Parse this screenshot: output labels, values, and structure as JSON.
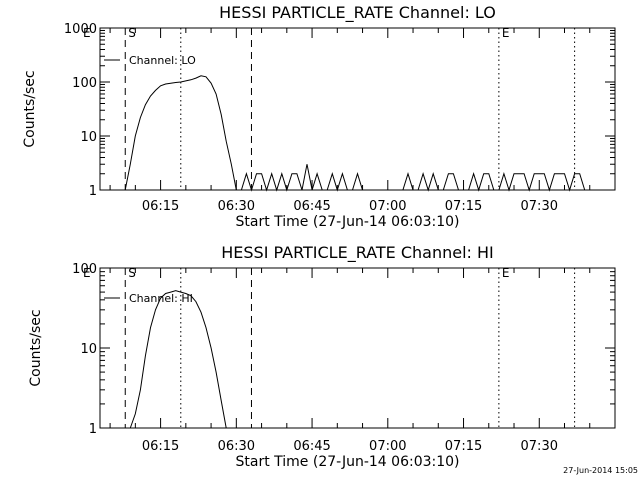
{
  "timestamp": "27-Jun-2014 15:05",
  "chart_data": [
    {
      "type": "line",
      "title": "HESSI PARTICLE_RATE Channel: LO",
      "xlabel": "Start Time (27-Jun-14 06:03:10)",
      "ylabel": "Counts/sec",
      "yscale": "log",
      "ylim": [
        1,
        1000
      ],
      "ytick_labels": [
        "1000",
        "100",
        "10",
        "1"
      ],
      "xlim": [
        "06:03",
        "07:45"
      ],
      "xtick_labels": [
        "06:15",
        "06:30",
        "06:45",
        "07:00",
        "07:15",
        "07:30"
      ],
      "legend": "top-left",
      "series": [
        {
          "name": "Channel: LO",
          "x": [
            "06:08",
            "06:09",
            "06:10",
            "06:11",
            "06:12",
            "06:13",
            "06:14",
            "06:15",
            "06:16",
            "06:17",
            "06:18",
            "06:19",
            "06:20",
            "06:21",
            "06:22",
            "06:23",
            "06:24",
            "06:25",
            "06:26",
            "06:27",
            "06:28",
            "06:29",
            "06:30",
            "06:31",
            "06:32",
            "06:33",
            "06:34",
            "06:35",
            "06:36",
            "06:37",
            "06:38",
            "06:39",
            "06:40",
            "06:41",
            "06:42",
            "06:43",
            "06:44",
            "06:45",
            "06:46",
            "06:47",
            "06:48",
            "06:49",
            "06:50",
            "06:51",
            "06:52",
            "06:53",
            "06:54",
            "06:55",
            "06:56",
            "06:57",
            "06:58",
            "06:59",
            "07:00",
            "07:01",
            "07:02",
            "07:03",
            "07:04",
            "07:05",
            "07:06",
            "07:07",
            "07:08",
            "07:09",
            "07:10",
            "07:11",
            "07:12",
            "07:13",
            "07:14",
            "07:15",
            "07:16",
            "07:17",
            "07:18",
            "07:19",
            "07:20",
            "07:21",
            "07:22",
            "07:23",
            "07:24",
            "07:25",
            "07:26",
            "07:27",
            "07:28",
            "07:29",
            "07:30",
            "07:31",
            "07:32",
            "07:33",
            "07:34",
            "07:35",
            "07:36",
            "07:37",
            "07:38",
            "07:39"
          ],
          "values": [
            1,
            3,
            10,
            22,
            38,
            55,
            70,
            85,
            92,
            95,
            98,
            100,
            105,
            110,
            118,
            130,
            125,
            95,
            60,
            25,
            8,
            3,
            1,
            1,
            2,
            1,
            2,
            2,
            1,
            2,
            1,
            2,
            1,
            2,
            2,
            1,
            3,
            1,
            2,
            1,
            1,
            2,
            1,
            2,
            1,
            1,
            2,
            1,
            1,
            1,
            1,
            1,
            1,
            1,
            1,
            1,
            2,
            1,
            1,
            2,
            1,
            2,
            1,
            1,
            2,
            2,
            1,
            1,
            1,
            2,
            1,
            2,
            2,
            1,
            1,
            2,
            1,
            2,
            2,
            2,
            1,
            2,
            2,
            2,
            1,
            2,
            2,
            2,
            1,
            2,
            2,
            1
          ]
        }
      ],
      "vlines": [
        {
          "label": "S",
          "time": "06:08",
          "style": "dashed"
        },
        {
          "label": "",
          "time": "06:19",
          "style": "dotted"
        },
        {
          "label": "",
          "time": "06:33",
          "style": "dashed"
        },
        {
          "label": "E",
          "time": "07:22",
          "style": "dotted"
        },
        {
          "label": "",
          "time": "07:37",
          "style": "dotted"
        }
      ],
      "corner_label": "E"
    },
    {
      "type": "line",
      "title": "HESSI PARTICLE_RATE Channel: HI",
      "xlabel": "Start Time (27-Jun-14 06:03:10)",
      "ylabel": "Counts/sec",
      "yscale": "log",
      "ylim": [
        1,
        100
      ],
      "ytick_labels": [
        "100",
        "10",
        "1"
      ],
      "xlim": [
        "06:03",
        "07:45"
      ],
      "xtick_labels": [
        "06:15",
        "06:30",
        "06:45",
        "07:00",
        "07:15",
        "07:30"
      ],
      "legend": "top-left",
      "series": [
        {
          "name": "Channel: HI",
          "x": [
            "06:09",
            "06:10",
            "06:11",
            "06:12",
            "06:13",
            "06:14",
            "06:15",
            "06:16",
            "06:17",
            "06:18",
            "06:19",
            "06:20",
            "06:21",
            "06:22",
            "06:23",
            "06:24",
            "06:25",
            "06:26",
            "06:27",
            "06:28"
          ],
          "values": [
            1,
            1.5,
            3,
            8,
            18,
            30,
            42,
            48,
            50,
            52,
            50,
            48,
            45,
            38,
            28,
            18,
            10,
            5,
            2.2,
            1
          ]
        }
      ],
      "vlines": [
        {
          "label": "S",
          "time": "06:08",
          "style": "dashed"
        },
        {
          "label": "",
          "time": "06:19",
          "style": "dotted"
        },
        {
          "label": "",
          "time": "06:33",
          "style": "dashed"
        },
        {
          "label": "E",
          "time": "07:22",
          "style": "dotted"
        },
        {
          "label": "",
          "time": "07:37",
          "style": "dotted"
        }
      ],
      "corner_label": "E"
    }
  ]
}
